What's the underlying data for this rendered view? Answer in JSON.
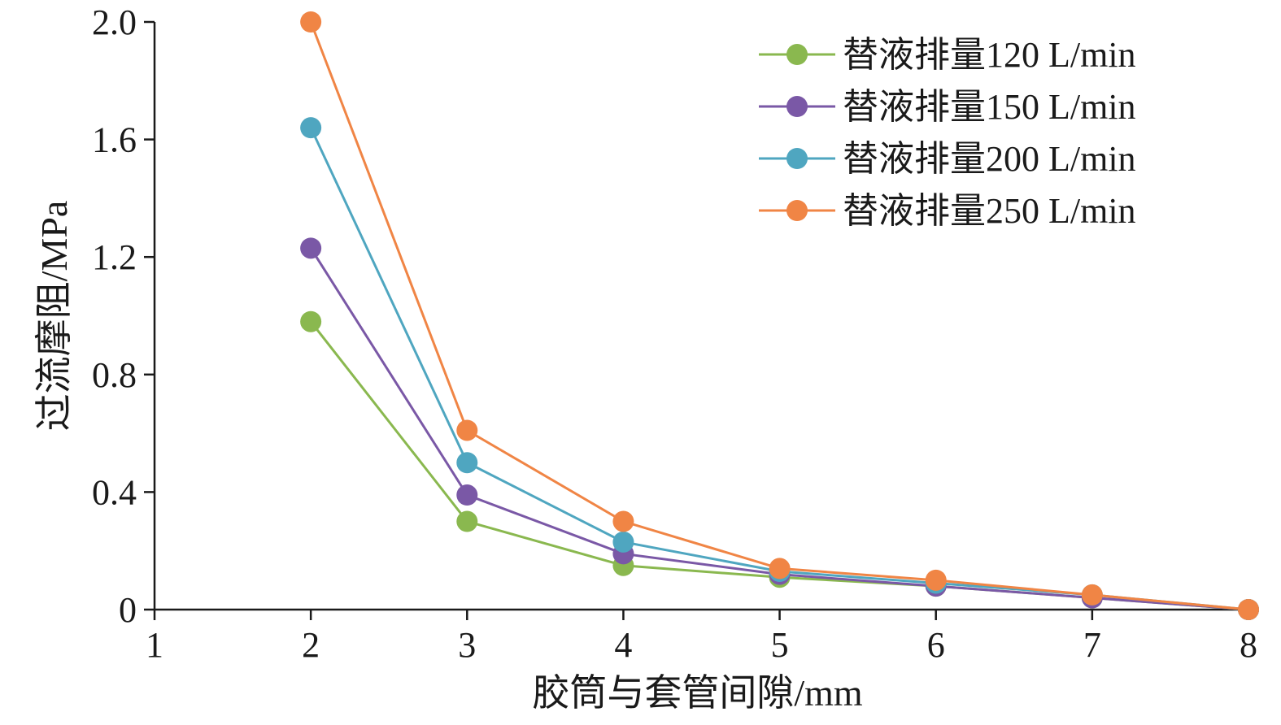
{
  "chart_data": {
    "type": "line",
    "xlabel": "胶筒与套管间隙/mm",
    "ylabel": "过流摩阻/MPa",
    "xlim": [
      1,
      8
    ],
    "ylim": [
      0,
      2.0
    ],
    "x_ticks": [
      "1",
      "2",
      "3",
      "4",
      "5",
      "6",
      "7",
      "8"
    ],
    "y_ticks": [
      "0",
      "0.4",
      "0.8",
      "1.2",
      "1.6",
      "2.0"
    ],
    "grid": false,
    "legend_position": "top-right",
    "x": [
      2,
      3,
      4,
      5,
      6,
      7,
      8
    ],
    "series": [
      {
        "name": "替液排量120 L/min",
        "color": "#8ab84f",
        "values": [
          0.98,
          0.3,
          0.15,
          0.11,
          0.08,
          0.04,
          0.0
        ]
      },
      {
        "name": "替液排量150 L/min",
        "color": "#7a58a6",
        "values": [
          1.23,
          0.39,
          0.19,
          0.12,
          0.08,
          0.04,
          0.0
        ]
      },
      {
        "name": "替液排量200 L/min",
        "color": "#4fa6c0",
        "values": [
          1.64,
          0.5,
          0.23,
          0.13,
          0.09,
          0.05,
          0.0
        ]
      },
      {
        "name": "替液排量250 L/min",
        "color": "#f08545",
        "values": [
          2.0,
          0.61,
          0.3,
          0.14,
          0.1,
          0.05,
          0.0
        ]
      }
    ]
  }
}
